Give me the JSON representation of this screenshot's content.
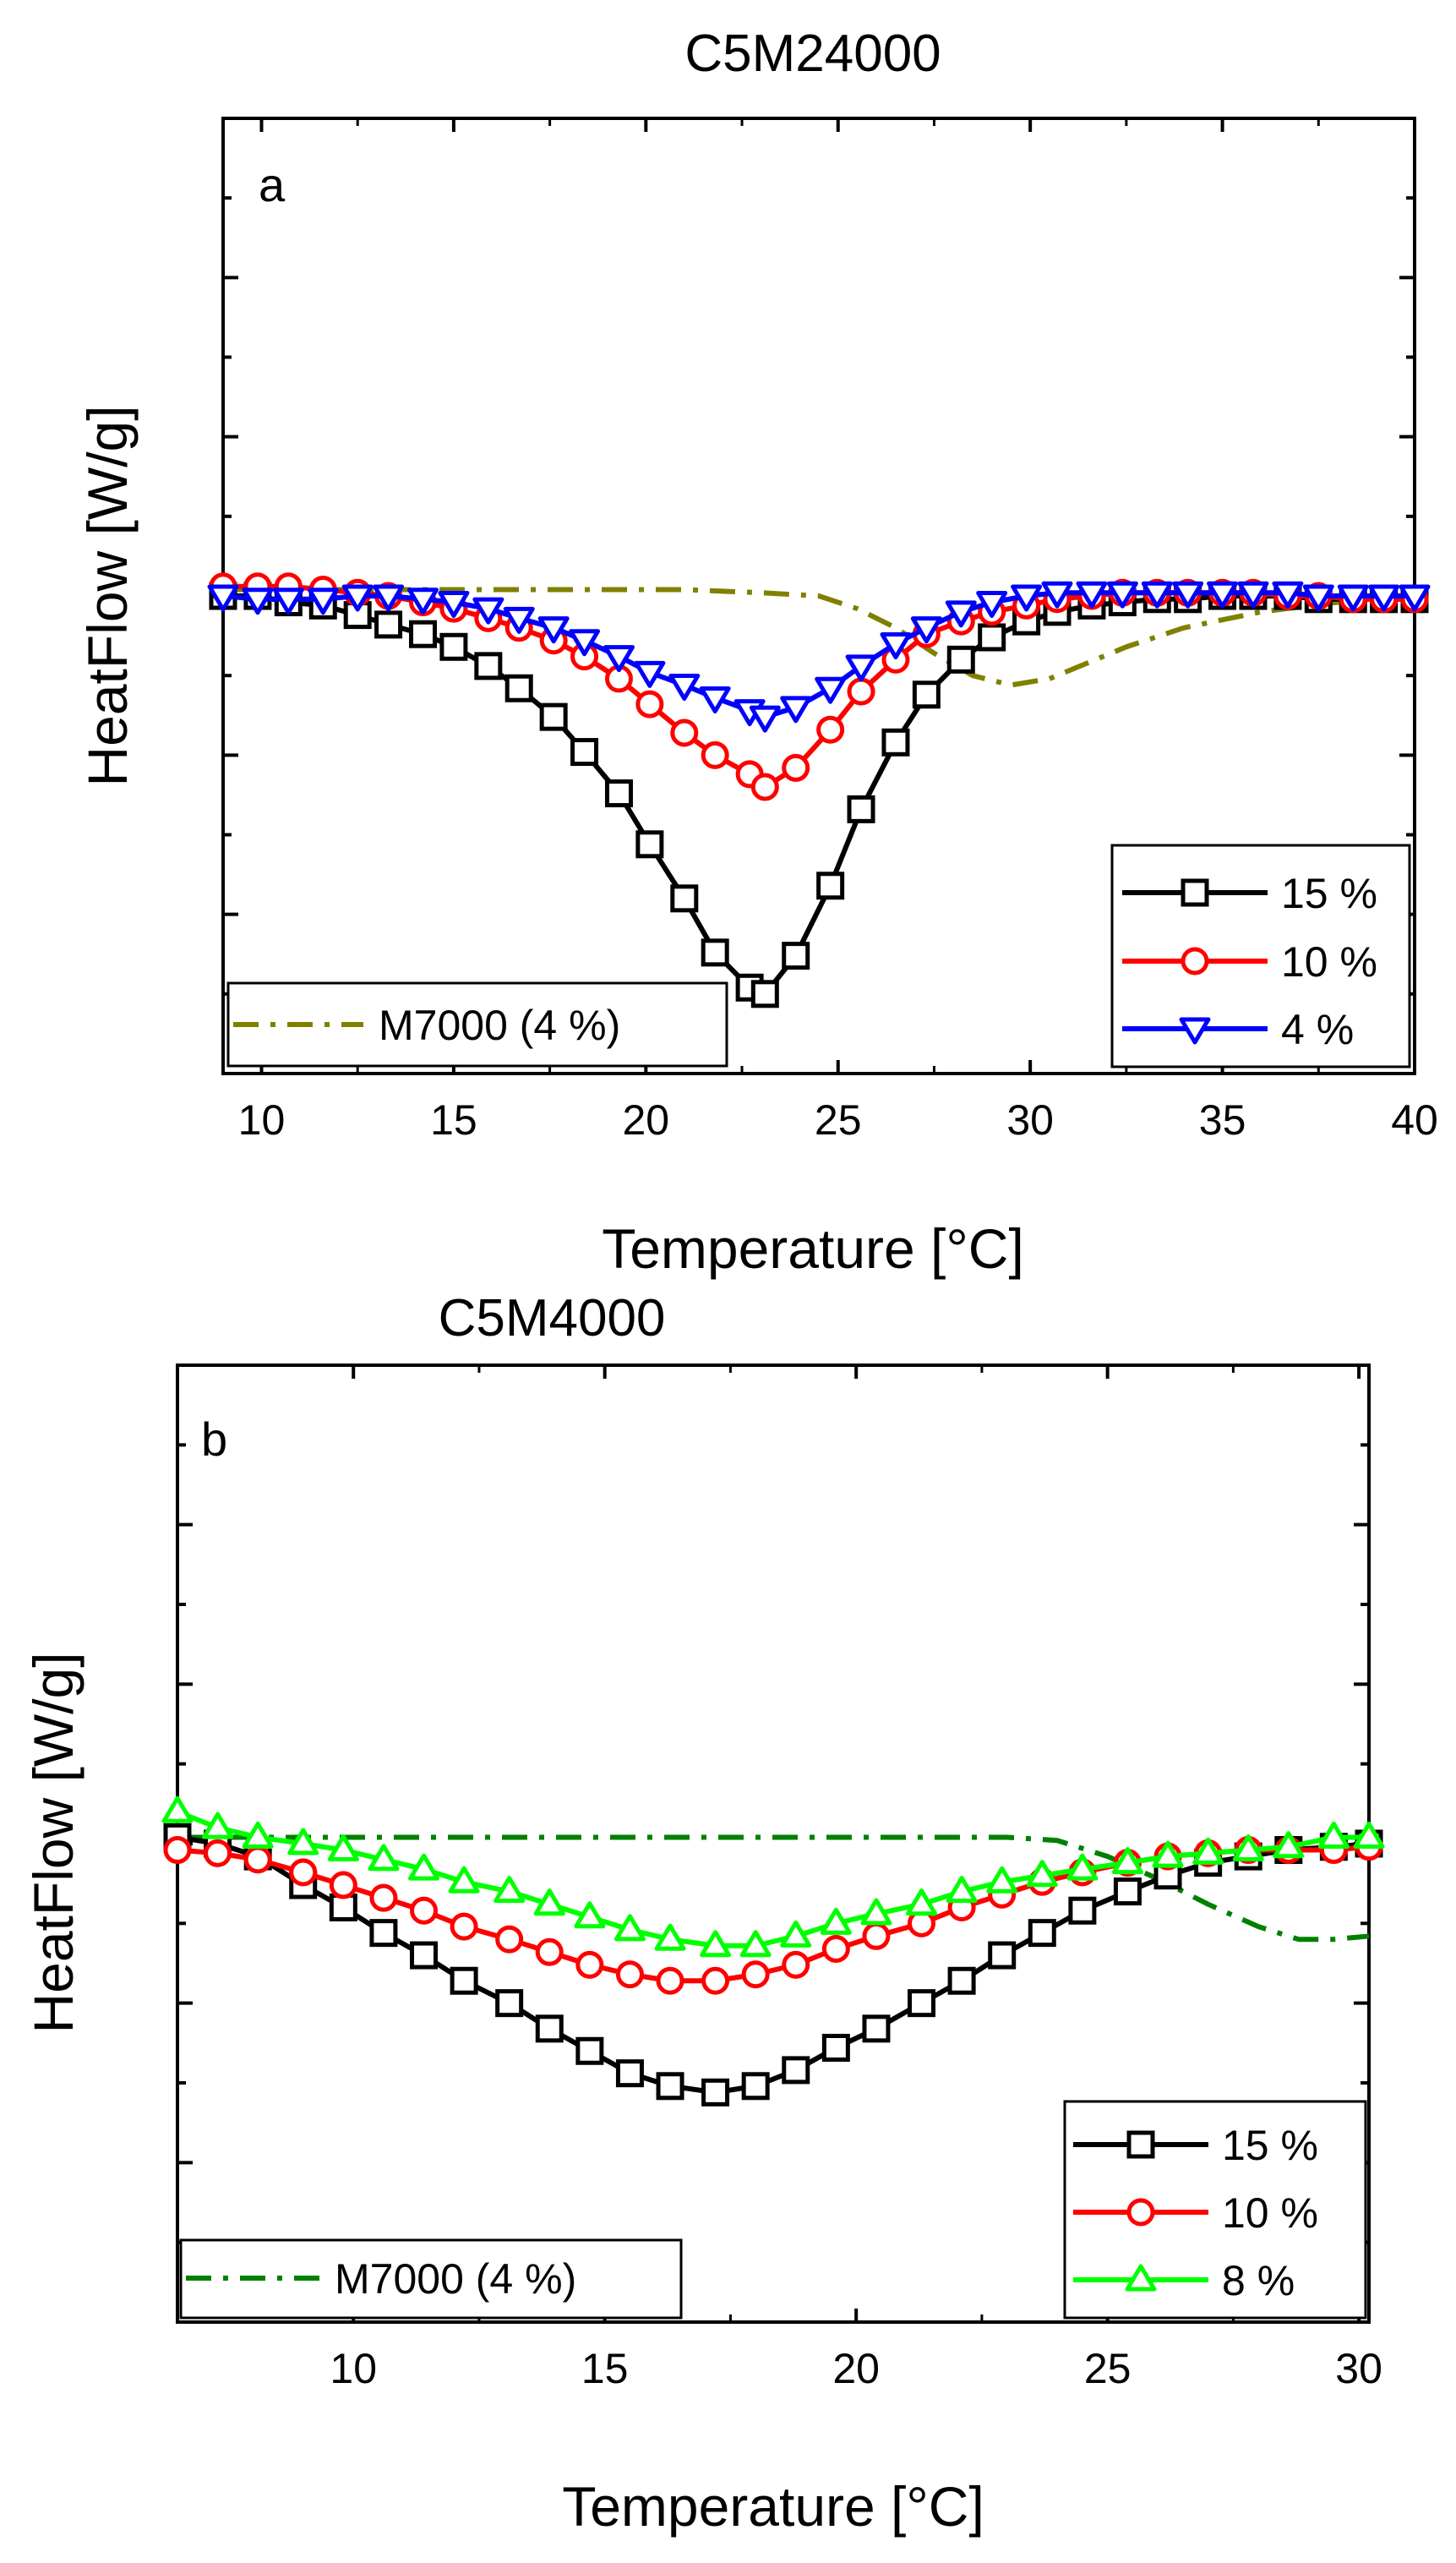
{
  "chart_data": [
    {
      "type": "line",
      "panel_label": "a",
      "title": "C5M24000",
      "xlabel": "Temperature [°C]",
      "ylabel": "HeatFlow [W/g]",
      "xlim": [
        9,
        40
      ],
      "ylim": [
        -1.5,
        1.5
      ],
      "xticks": [
        10,
        15,
        20,
        25,
        30,
        35,
        40
      ],
      "ytick_values": [
        -1.5,
        -1.25,
        -1.0,
        -0.75,
        -0.5,
        -0.25,
        0,
        0.25,
        0.5,
        0.75,
        1.0,
        1.25,
        1.5
      ],
      "y_tick_labels_shown": false,
      "legend_position": "bottom-right",
      "reference_legend_position": "bottom-left",
      "series": [
        {
          "name": "15 %",
          "color": "#000000",
          "marker": "square",
          "line_style": "solid",
          "x": [
            9.0,
            9.9,
            10.7,
            11.6,
            12.5,
            13.3,
            14.2,
            15.0,
            15.9,
            16.7,
            17.6,
            18.4,
            19.3,
            20.1,
            21.0,
            21.8,
            22.7,
            23.1,
            23.9,
            24.8,
            25.6,
            26.5,
            27.3,
            28.2,
            29.0,
            29.9,
            30.7,
            31.6,
            32.4,
            33.3,
            34.1,
            35.0,
            35.8,
            36.7,
            37.5,
            38.4,
            39.2,
            40.0
          ],
          "values": [
            0.0,
            0.0,
            -0.02,
            -0.03,
            -0.06,
            -0.09,
            -0.12,
            -0.16,
            -0.22,
            -0.29,
            -0.38,
            -0.49,
            -0.62,
            -0.78,
            -0.95,
            -1.12,
            -1.23,
            -1.25,
            -1.13,
            -0.91,
            -0.67,
            -0.46,
            -0.31,
            -0.2,
            -0.13,
            -0.08,
            -0.05,
            -0.03,
            -0.02,
            -0.01,
            -0.01,
            0.0,
            0.0,
            0.0,
            -0.01,
            -0.01,
            -0.01,
            -0.01
          ]
        },
        {
          "name": "10 %",
          "color": "#ff0000",
          "marker": "circle",
          "line_style": "solid",
          "x": [
            9.0,
            9.9,
            10.7,
            11.6,
            12.5,
            13.3,
            14.2,
            15.0,
            15.9,
            16.7,
            17.6,
            18.4,
            19.3,
            20.1,
            21.0,
            21.8,
            22.7,
            23.1,
            23.9,
            24.8,
            25.6,
            26.5,
            27.3,
            28.2,
            29.0,
            29.9,
            30.7,
            31.6,
            32.4,
            33.3,
            34.1,
            35.0,
            35.8,
            36.7,
            37.5,
            38.4,
            39.2,
            40.0
          ],
          "values": [
            0.03,
            0.03,
            0.03,
            0.02,
            0.01,
            0.0,
            -0.02,
            -0.04,
            -0.07,
            -0.1,
            -0.14,
            -0.19,
            -0.26,
            -0.34,
            -0.43,
            -0.5,
            -0.56,
            -0.6,
            -0.54,
            -0.42,
            -0.3,
            -0.2,
            -0.12,
            -0.08,
            -0.05,
            -0.03,
            -0.01,
            0.0,
            0.01,
            0.01,
            0.01,
            0.01,
            0.01,
            0.0,
            0.0,
            -0.01,
            -0.01,
            -0.01
          ]
        },
        {
          "name": "4 %",
          "color": "#0000ff",
          "marker": "triangle-down",
          "line_style": "solid",
          "x": [
            9.0,
            9.9,
            10.7,
            11.6,
            12.5,
            13.3,
            14.2,
            15.0,
            15.9,
            16.7,
            17.6,
            18.4,
            19.3,
            20.1,
            21.0,
            21.8,
            22.7,
            23.1,
            23.9,
            24.8,
            25.6,
            26.5,
            27.3,
            28.2,
            29.0,
            29.9,
            30.7,
            31.6,
            32.4,
            33.3,
            34.1,
            35.0,
            35.8,
            36.7,
            37.5,
            38.4,
            39.2,
            40.0
          ],
          "values": [
            0.0,
            -0.01,
            -0.01,
            -0.01,
            0.0,
            0.0,
            -0.01,
            -0.02,
            -0.04,
            -0.07,
            -0.1,
            -0.14,
            -0.19,
            -0.24,
            -0.28,
            -0.32,
            -0.36,
            -0.38,
            -0.35,
            -0.29,
            -0.22,
            -0.15,
            -0.1,
            -0.05,
            -0.02,
            0.0,
            0.01,
            0.01,
            0.01,
            0.01,
            0.01,
            0.01,
            0.01,
            0.01,
            0.0,
            0.0,
            0.0,
            0.0
          ]
        },
        {
          "name": "M7000 (4 %)",
          "color": "#808000",
          "marker": "none",
          "line_style": "dash-dot",
          "x": [
            9.0,
            12.0,
            15.0,
            18.0,
            21.0,
            23.0,
            24.5,
            25.5,
            26.5,
            27.5,
            28.5,
            29.5,
            30.5,
            31.5,
            32.5,
            34.0,
            36.0,
            38.0,
            40.0
          ],
          "values": [
            0.02,
            0.02,
            0.02,
            0.02,
            0.02,
            0.01,
            0.0,
            -0.04,
            -0.1,
            -0.18,
            -0.25,
            -0.28,
            -0.26,
            -0.21,
            -0.16,
            -0.1,
            -0.05,
            -0.02,
            0.0
          ]
        }
      ]
    },
    {
      "type": "line",
      "panel_label": "b",
      "title": "C5M4000",
      "xlabel": "Temperature [°C]",
      "ylabel": "HeatFlow [W/g]",
      "xlim": [
        6.5,
        30.2
      ],
      "ylim": [
        -1.5,
        1.5
      ],
      "xticks": [
        10,
        15,
        20,
        25,
        30
      ],
      "ytick_values": [
        -1.5,
        -1.25,
        -1.0,
        -0.75,
        -0.5,
        -0.25,
        0,
        0.25,
        0.5,
        0.75,
        1.0,
        1.25,
        1.5
      ],
      "y_tick_labels_shown": false,
      "legend_position": "bottom-right",
      "reference_legend_position": "bottom-left",
      "series": [
        {
          "name": "15 %",
          "color": "#000000",
          "marker": "square",
          "line_style": "solid",
          "x": [
            6.5,
            7.3,
            8.1,
            9.0,
            9.8,
            10.6,
            11.4,
            12.2,
            13.1,
            13.9,
            14.7,
            15.5,
            16.3,
            17.2,
            18.0,
            18.8,
            19.6,
            20.4,
            21.3,
            22.1,
            22.9,
            23.7,
            24.5,
            25.4,
            26.2,
            27.0,
            27.8,
            28.6,
            29.5,
            30.2
          ],
          "values": [
            0.02,
            0.0,
            -0.04,
            -0.13,
            -0.2,
            -0.28,
            -0.35,
            -0.43,
            -0.5,
            -0.58,
            -0.65,
            -0.72,
            -0.76,
            -0.78,
            -0.76,
            -0.71,
            -0.64,
            -0.58,
            -0.5,
            -0.43,
            -0.35,
            -0.28,
            -0.21,
            -0.15,
            -0.1,
            -0.06,
            -0.04,
            -0.02,
            -0.01,
            0.0
          ]
        },
        {
          "name": "10 %",
          "color": "#ff0000",
          "marker": "circle",
          "line_style": "solid",
          "x": [
            6.5,
            7.3,
            8.1,
            9.0,
            9.8,
            10.6,
            11.4,
            12.2,
            13.1,
            13.9,
            14.7,
            15.5,
            16.3,
            17.2,
            18.0,
            18.8,
            19.6,
            20.4,
            21.3,
            22.1,
            22.9,
            23.7,
            24.5,
            25.4,
            26.2,
            27.0,
            27.8,
            28.6,
            29.5,
            30.2
          ],
          "values": [
            -0.02,
            -0.03,
            -0.05,
            -0.09,
            -0.13,
            -0.17,
            -0.21,
            -0.26,
            -0.3,
            -0.34,
            -0.38,
            -0.41,
            -0.43,
            -0.43,
            -0.41,
            -0.38,
            -0.33,
            -0.29,
            -0.25,
            -0.2,
            -0.16,
            -0.12,
            -0.09,
            -0.06,
            -0.04,
            -0.03,
            -0.02,
            -0.02,
            -0.02,
            -0.01
          ]
        },
        {
          "name": "8 %",
          "color": "#00ff00",
          "marker": "triangle-up",
          "line_style": "solid",
          "x": [
            6.5,
            7.3,
            8.1,
            9.0,
            9.8,
            10.6,
            11.4,
            12.2,
            13.1,
            13.9,
            14.7,
            15.5,
            16.3,
            17.2,
            18.0,
            18.8,
            19.6,
            20.4,
            21.3,
            22.1,
            22.9,
            23.7,
            24.5,
            25.4,
            26.2,
            27.0,
            27.8,
            28.6,
            29.5,
            30.2
          ],
          "values": [
            0.1,
            0.05,
            0.02,
            0.0,
            -0.02,
            -0.05,
            -0.08,
            -0.12,
            -0.15,
            -0.19,
            -0.23,
            -0.27,
            -0.3,
            -0.32,
            -0.32,
            -0.29,
            -0.25,
            -0.22,
            -0.19,
            -0.15,
            -0.12,
            -0.1,
            -0.08,
            -0.06,
            -0.04,
            -0.03,
            -0.02,
            -0.01,
            0.02,
            0.02
          ]
        },
        {
          "name": "M7000 (4 %)",
          "color": "#008000",
          "marker": "none",
          "line_style": "dash-dot",
          "x": [
            6.5,
            10.0,
            14.0,
            18.0,
            21.0,
            23.0,
            24.0,
            25.0,
            26.0,
            27.0,
            28.0,
            28.8,
            29.5,
            30.2
          ],
          "values": [
            0.02,
            0.02,
            0.02,
            0.02,
            0.02,
            0.02,
            0.01,
            -0.04,
            -0.11,
            -0.19,
            -0.26,
            -0.3,
            -0.3,
            -0.29
          ]
        }
      ]
    }
  ]
}
